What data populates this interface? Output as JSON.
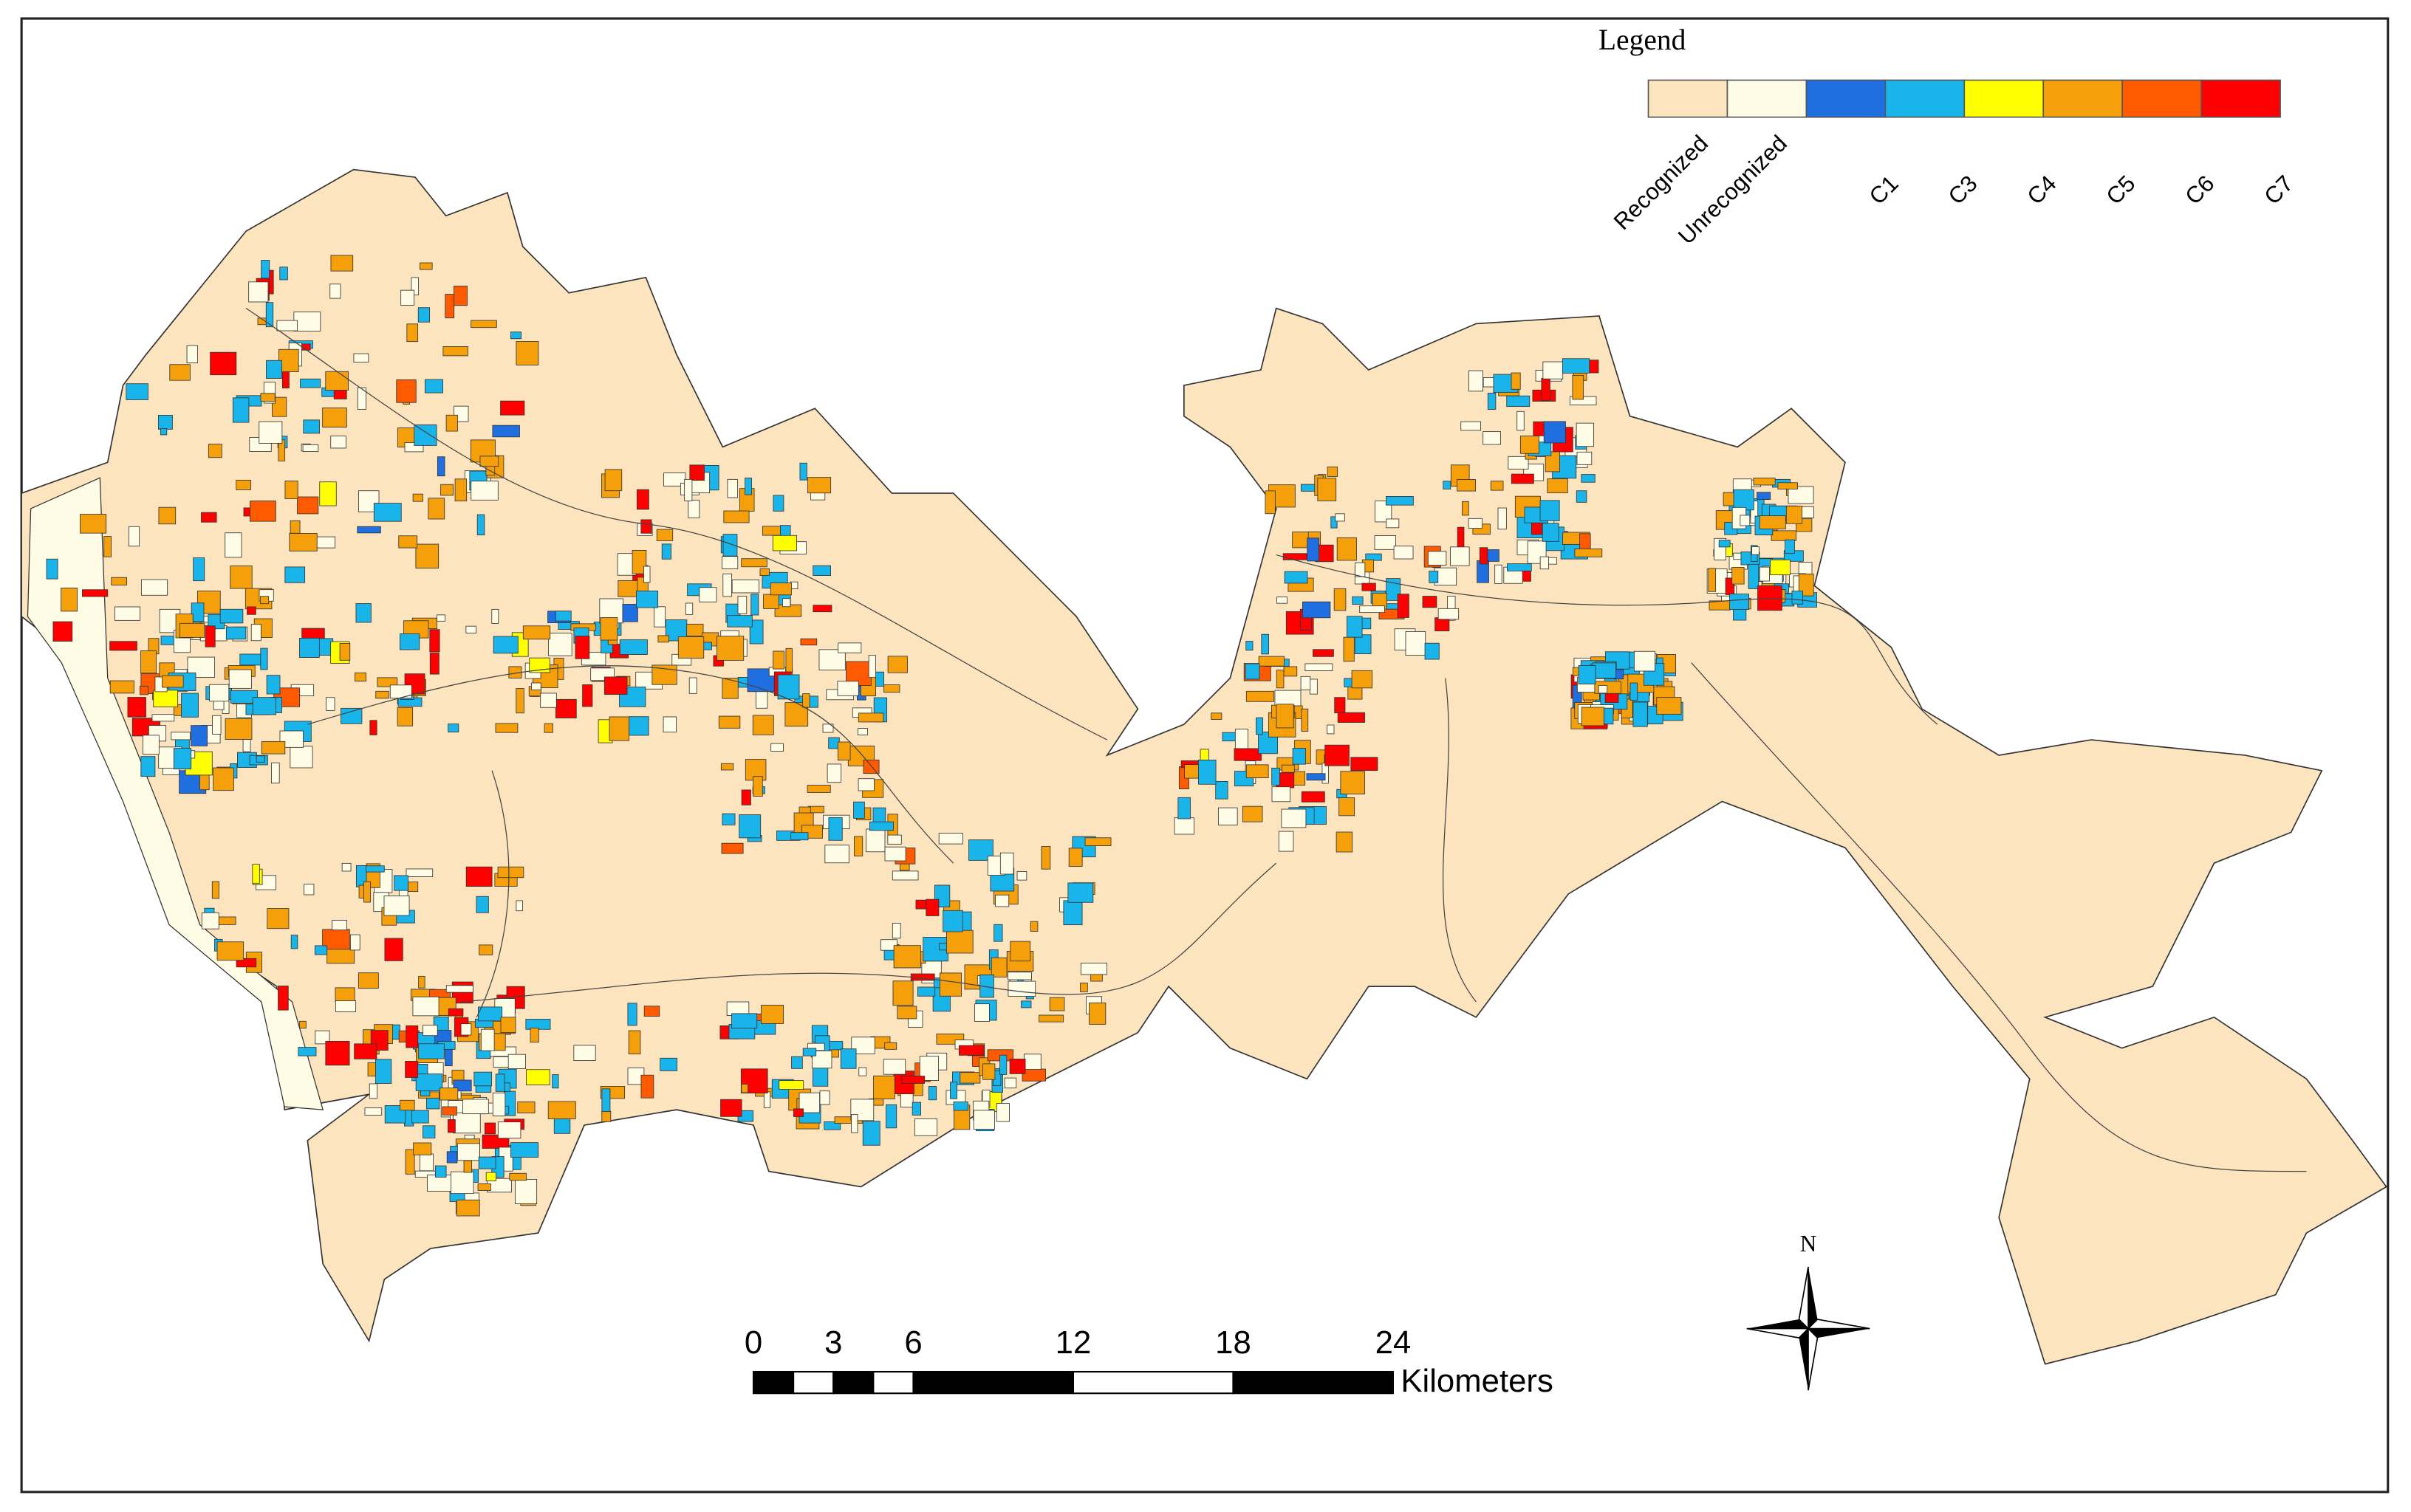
{
  "legend": {
    "title": "Legend",
    "items": [
      {
        "name": "Recognized",
        "color": "#fce4bf"
      },
      {
        "name": "Unrecognized",
        "color": "#fffce6"
      },
      {
        "name": "C1",
        "color": "#1f6fe0"
      },
      {
        "name": "C3",
        "color": "#19b5ea"
      },
      {
        "name": "C4",
        "color": "#ffff00"
      },
      {
        "name": "C5",
        "color": "#f5a00a"
      },
      {
        "name": "C6",
        "color": "#ff5a00"
      },
      {
        "name": "C7",
        "color": "#ff0000"
      }
    ]
  },
  "scale_bar": {
    "ticks": [
      0,
      3,
      6,
      12,
      18,
      24
    ],
    "unit": "Kilometers"
  },
  "north_arrow": {
    "label": "N"
  }
}
